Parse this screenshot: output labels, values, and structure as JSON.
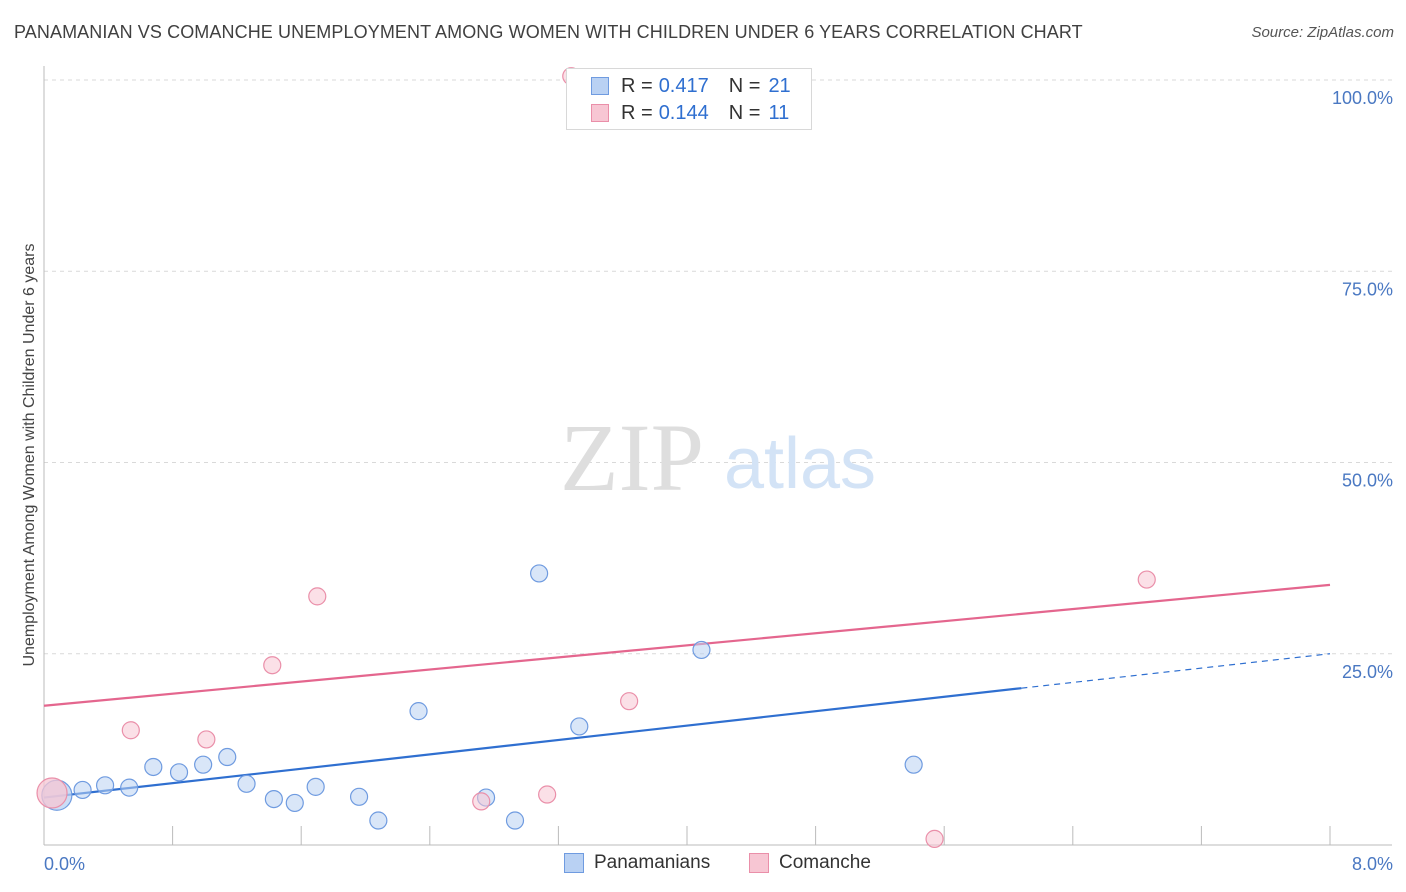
{
  "title": "PANAMANIAN VS COMANCHE UNEMPLOYMENT AMONG WOMEN WITH CHILDREN UNDER 6 YEARS CORRELATION CHART",
  "source": "Source: ZipAtlas.com",
  "watermark": {
    "zip": "ZIP",
    "atlas": "atlas"
  },
  "legend": {
    "panamanians": {
      "r_label": "R =",
      "r_value": "0.417",
      "n_label": "N =",
      "n_value": "21"
    },
    "comanche": {
      "r_label": "R =",
      "r_value": "0.144",
      "n_label": "N =",
      "n_value": "11"
    }
  },
  "bottom_legend": {
    "panamanians": "Panamanians",
    "comanche": "Comanche"
  },
  "colors": {
    "blue_fill": "#b9d1f3",
    "blue_stroke": "#6f9be0",
    "blue_line": "#2f6fd0",
    "pink_fill": "#f7c6d3",
    "pink_stroke": "#ea8fa9",
    "pink_line": "#e4668e",
    "grid": "#d9d9d9",
    "tick_text": "#4a78c2"
  },
  "chart_data": {
    "type": "scatter",
    "title": "PANAMANIAN VS COMANCHE UNEMPLOYMENT AMONG WOMEN WITH CHILDREN UNDER 6 YEARS CORRELATION CHART",
    "xlabel": "",
    "ylabel": "Unemployment Among Women with Children Under 6 years",
    "xlim": [
      0,
      8
    ],
    "ylim": [
      0,
      100
    ],
    "x_tick_labels": [
      "0.0%",
      "8.0%"
    ],
    "y_tick_labels": [
      "100.0%",
      "75.0%",
      "50.0%",
      "25.0%"
    ],
    "y_tick_values": [
      100,
      75,
      50,
      25
    ],
    "grid": true,
    "series": [
      {
        "name": "Panamanians",
        "points": [
          {
            "x": 0.08,
            "y": 6.5,
            "size": "large"
          },
          {
            "x": 0.24,
            "y": 7.2
          },
          {
            "x": 0.38,
            "y": 7.8
          },
          {
            "x": 0.53,
            "y": 7.5
          },
          {
            "x": 0.68,
            "y": 10.2
          },
          {
            "x": 0.84,
            "y": 9.5
          },
          {
            "x": 0.99,
            "y": 10.5
          },
          {
            "x": 1.14,
            "y": 11.5
          },
          {
            "x": 1.26,
            "y": 8.0
          },
          {
            "x": 1.43,
            "y": 6.0
          },
          {
            "x": 1.56,
            "y": 5.5
          },
          {
            "x": 1.69,
            "y": 7.6
          },
          {
            "x": 1.96,
            "y": 6.3
          },
          {
            "x": 2.08,
            "y": 3.2
          },
          {
            "x": 2.33,
            "y": 17.5
          },
          {
            "x": 2.75,
            "y": 6.2
          },
          {
            "x": 2.93,
            "y": 3.2
          },
          {
            "x": 3.08,
            "y": 35.5
          },
          {
            "x": 3.33,
            "y": 15.5
          },
          {
            "x": 4.09,
            "y": 25.5
          },
          {
            "x": 5.41,
            "y": 10.5
          }
        ],
        "trend": {
          "x": [
            0,
            6.08
          ],
          "y": [
            6.2,
            20.5
          ],
          "dashed_extension": {
            "x": [
              6.08,
              8.0
            ],
            "y": [
              20.5,
              25.0
            ]
          }
        }
      },
      {
        "name": "Comanche",
        "points": [
          {
            "x": 0.05,
            "y": 6.8,
            "size": "large"
          },
          {
            "x": 0.54,
            "y": 15.0
          },
          {
            "x": 1.01,
            "y": 13.8
          },
          {
            "x": 1.42,
            "y": 23.5
          },
          {
            "x": 1.7,
            "y": 32.5
          },
          {
            "x": 2.72,
            "y": 5.7
          },
          {
            "x": 3.13,
            "y": 6.6
          },
          {
            "x": 3.28,
            "y": 100.5
          },
          {
            "x": 3.64,
            "y": 18.8
          },
          {
            "x": 5.54,
            "y": 0.8
          },
          {
            "x": 6.86,
            "y": 34.7
          }
        ],
        "trend": {
          "x": [
            0,
            8.0
          ],
          "y": [
            18.2,
            34.0
          ]
        }
      }
    ]
  }
}
